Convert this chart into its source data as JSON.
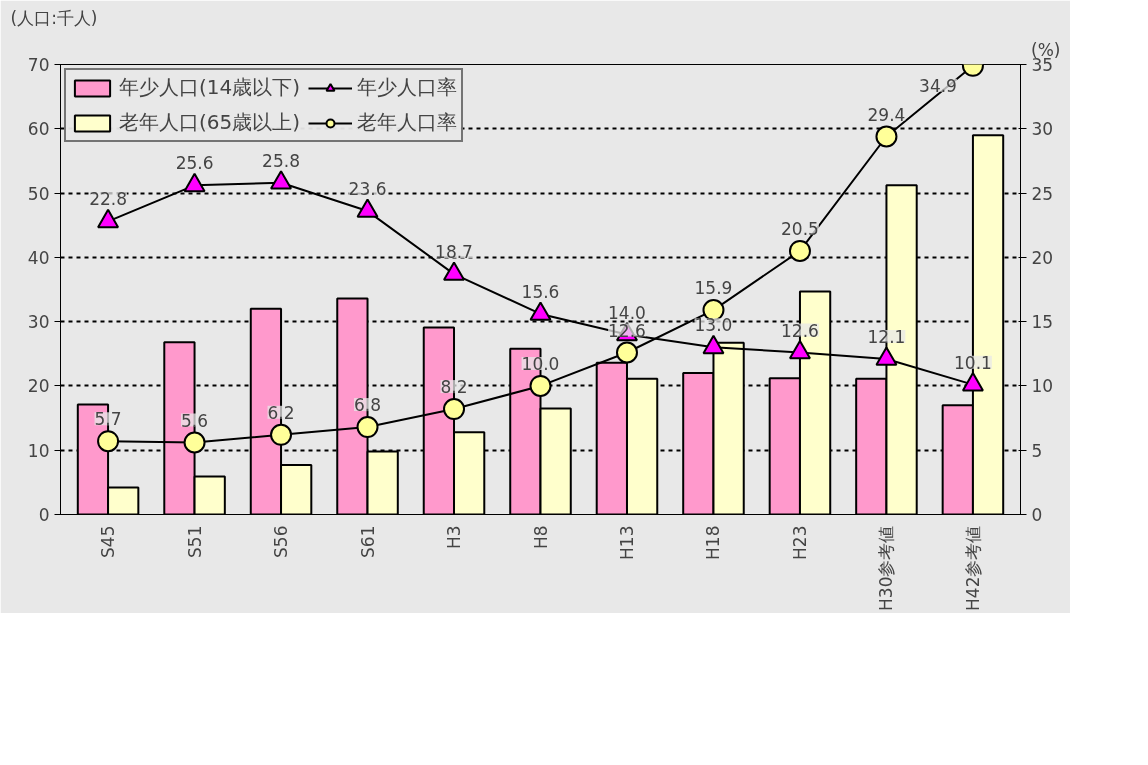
{
  "chart_data": {
    "type": "bar",
    "ylabel": "(人口:千人)",
    "y2label": "(%)",
    "categories": [
      "S45",
      "S51",
      "S56",
      "S61",
      "H3",
      "H8",
      "H13",
      "H18",
      "H23",
      "H30参考値",
      "H42参考値"
    ],
    "series": [
      {
        "name": "年少人口(14歳以下)",
        "color": "#ff99cc",
        "values": [
          17.1,
          26.8,
          32.0,
          33.6,
          29.1,
          25.8,
          23.6,
          22.0,
          21.2,
          21.1,
          17.0
        ]
      },
      {
        "name": "老年人口(65歳以上)",
        "color": "#ffffcc",
        "values": [
          4.2,
          5.9,
          7.7,
          9.8,
          12.8,
          16.5,
          21.1,
          26.7,
          34.7,
          51.2,
          59.0
        ]
      },
      {
        "name": "年少人口率",
        "type": "line",
        "axis": "y2",
        "color": "#ff00ff",
        "marker": "triangle",
        "value_labels": [
          "22.8",
          "25.6",
          "25.8",
          "23.6",
          "18.7",
          "15.6",
          "14.0",
          "13.0",
          "12.6",
          "12.1",
          "10.1"
        ],
        "values": [
          22.8,
          25.6,
          25.8,
          23.6,
          18.7,
          15.6,
          14.0,
          13.0,
          12.6,
          12.1,
          10.1
        ]
      },
      {
        "name": "老年人口率",
        "type": "line",
        "axis": "y2",
        "color": "#ffff99",
        "marker": "circle",
        "value_labels": [
          "5.7",
          "5.6",
          "6.2",
          "6.8",
          "8.2",
          "10.0",
          "12.6",
          "15.9",
          "20.5",
          "29.4",
          "34.9"
        ],
        "values": [
          5.7,
          5.6,
          6.2,
          6.8,
          8.2,
          10.0,
          12.6,
          15.9,
          20.5,
          29.4,
          34.9
        ]
      }
    ],
    "ylim": [
      0,
      70
    ],
    "yticks": [
      0,
      10,
      20,
      30,
      40,
      50,
      60,
      70
    ],
    "y2lim": [
      0,
      35
    ],
    "y2ticks": [
      0,
      5,
      10,
      15,
      20,
      25,
      30,
      35
    ],
    "grid": "y",
    "legend": "top left"
  }
}
